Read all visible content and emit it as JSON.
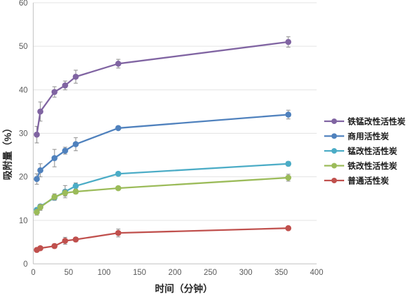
{
  "chart_data": {
    "type": "line",
    "title": "",
    "xlabel": "时间（分钟）",
    "ylabel": "吸附量（%）",
    "x": [
      5,
      10,
      30,
      45,
      60,
      120,
      360
    ],
    "xlim": [
      0,
      400
    ],
    "ylim": [
      0,
      60
    ],
    "x_ticks": [
      0,
      50,
      100,
      150,
      200,
      250,
      300,
      350,
      400
    ],
    "y_ticks": [
      0,
      10,
      20,
      30,
      40,
      50,
      60
    ],
    "grid": "horizontal",
    "legend_position": "right",
    "error_bars": true,
    "colors": {
      "grid": "#e3e3e3",
      "axis_line": "#bfbfbf",
      "error_bar": "#8c8c8c",
      "tick_text": "#595959"
    },
    "series": [
      {
        "name": "铁锰改性活性炭",
        "color": "#8064A2",
        "values": [
          29.7,
          35.0,
          39.5,
          41.0,
          43.0,
          46.0,
          51.0
        ],
        "errors": [
          1.9,
          2.2,
          1.2,
          1.0,
          1.5,
          1.0,
          1.2
        ]
      },
      {
        "name": "商用活性炭",
        "color": "#4F81BD",
        "values": [
          19.5,
          21.5,
          24.3,
          26.0,
          27.5,
          31.2,
          34.3
        ],
        "errors": [
          1.2,
          1.5,
          2.0,
          0.8,
          1.5,
          0.4,
          1.0
        ]
      },
      {
        "name": "锰改性活性炭",
        "color": "#4BACC6",
        "values": [
          12.4,
          13.2,
          15.2,
          16.6,
          17.9,
          20.7,
          23.0
        ],
        "errors": [
          0.5,
          0.5,
          0.6,
          1.4,
          0.7,
          0.4,
          0.5
        ]
      },
      {
        "name": "铁改性活性炭",
        "color": "#9BBB59",
        "values": [
          11.9,
          13.0,
          15.4,
          16.3,
          16.6,
          17.4,
          19.8
        ],
        "errors": [
          0.7,
          0.7,
          0.7,
          0.7,
          0.5,
          0.4,
          0.8
        ]
      },
      {
        "name": "普通活性炭",
        "color": "#C0504D",
        "values": [
          3.2,
          3.6,
          4.1,
          5.3,
          5.6,
          7.1,
          8.2
        ],
        "errors": [
          0.4,
          0.4,
          0.5,
          0.8,
          0.5,
          0.9,
          0.4
        ]
      }
    ]
  }
}
